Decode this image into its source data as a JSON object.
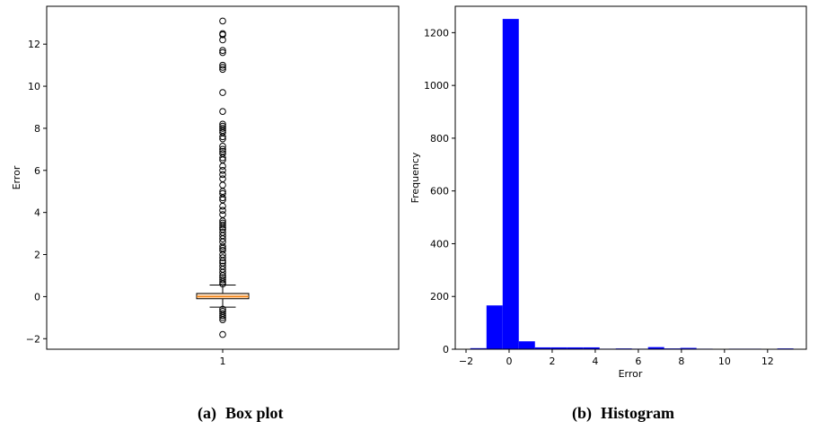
{
  "captions": {
    "a": {
      "tag": "(a)",
      "title": "Box plot"
    },
    "b": {
      "tag": "(b)",
      "title": "Histogram"
    }
  },
  "chart_data": [
    {
      "type": "box",
      "title": "",
      "xlabel": "",
      "ylabel": "Error",
      "categories": [
        "1"
      ],
      "ylim": [
        -2.5,
        13.8
      ],
      "yticks": [
        -2,
        0,
        2,
        4,
        6,
        8,
        10,
        12
      ],
      "box": {
        "q1": -0.1,
        "median": 0.0,
        "q3": 0.15,
        "whisker_low": -0.5,
        "whisker_high": 0.55
      },
      "box_color": "#ffe0c0",
      "median_color": "#f07f0e",
      "outliers": [
        13.1,
        12.5,
        12.45,
        12.2,
        11.7,
        11.6,
        11.0,
        10.9,
        10.8,
        9.7,
        8.8,
        8.2,
        8.1,
        8.0,
        7.9,
        7.8,
        7.6,
        7.5,
        7.15,
        7.0,
        6.9,
        6.8,
        6.6,
        6.5,
        6.2,
        6.0,
        5.8,
        5.6,
        5.3,
        5.0,
        4.9,
        4.7,
        4.6,
        4.3,
        4.1,
        3.9,
        3.6,
        3.5,
        3.4,
        3.3,
        3.2,
        3.05,
        2.9,
        2.75,
        2.6,
        2.4,
        2.3,
        2.2,
        2.0,
        1.85,
        1.7,
        1.6,
        1.45,
        1.3,
        1.15,
        1.0,
        0.9,
        0.8,
        0.7,
        0.6,
        -0.6,
        -0.7,
        -0.8,
        -0.9,
        -1.0,
        -1.1,
        -1.8
      ]
    },
    {
      "type": "histogram",
      "title": "",
      "xlabel": "Error",
      "ylabel": "Frequency",
      "xlim": [
        -2.5,
        13.8
      ],
      "ylim": [
        0,
        1300
      ],
      "xticks": [
        -2,
        0,
        2,
        4,
        6,
        8,
        10,
        12
      ],
      "yticks": [
        0,
        200,
        400,
        600,
        800,
        1000,
        1200
      ],
      "bar_color": "#0000ff",
      "bin_edges": [
        -1.8,
        -1.05,
        -0.3,
        0.45,
        1.2,
        1.95,
        2.7,
        3.45,
        4.2,
        4.95,
        5.7,
        6.45,
        7.2,
        7.95,
        8.7,
        9.45,
        10.2,
        10.95,
        11.7,
        12.45,
        13.2
      ],
      "counts": [
        4,
        166,
        1252,
        30,
        7,
        7,
        7,
        7,
        2,
        3,
        2,
        8,
        3,
        5,
        2,
        1,
        2,
        2,
        1,
        3
      ]
    }
  ]
}
